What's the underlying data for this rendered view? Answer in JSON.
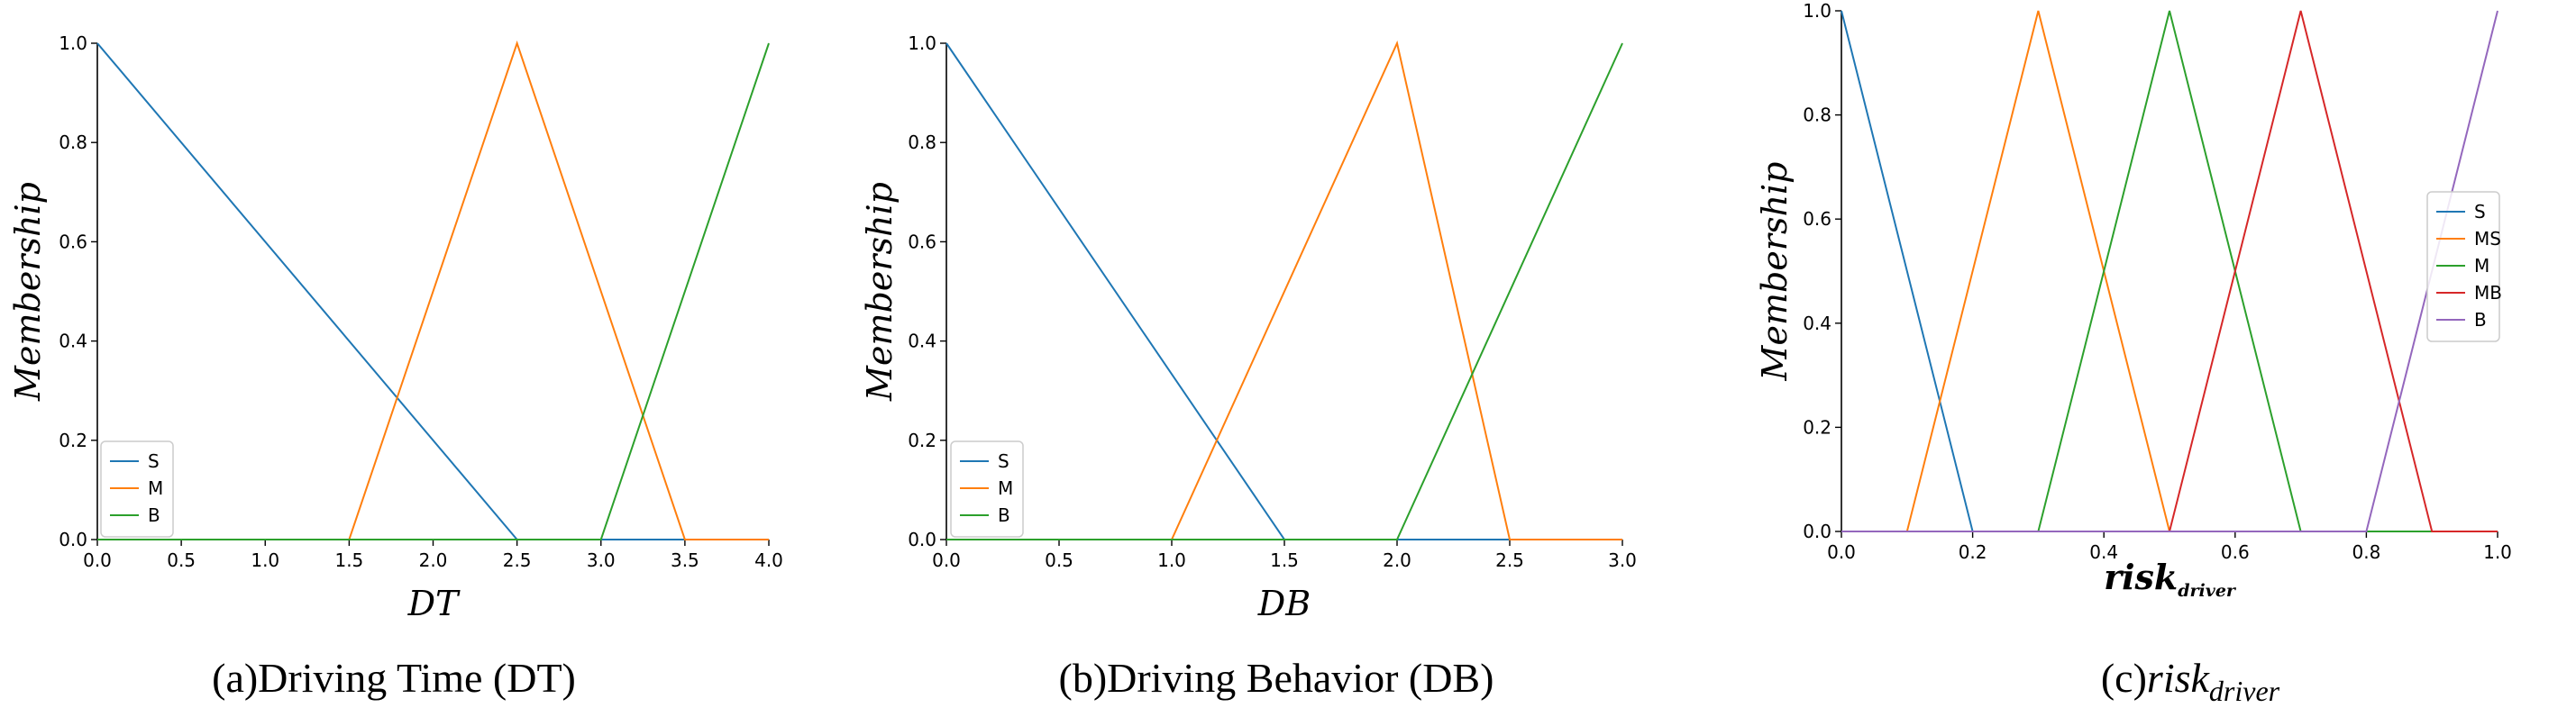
{
  "colors": {
    "S": "#1f77b4",
    "M": "#ff7f0e",
    "B": "#2ca02c",
    "MS": "#ff7f0e",
    "MB": "#d62728",
    "Bp": "#9467bd"
  },
  "chart_data": [
    {
      "type": "line",
      "caption": "(a)Driving Time (DT)",
      "xlabel": "DT",
      "ylabel": "Membership",
      "xlim": [
        0,
        4
      ],
      "ylim": [
        0,
        1
      ],
      "xticks": [
        "0.0",
        "0.5",
        "1.0",
        "1.5",
        "2.0",
        "2.5",
        "3.0",
        "3.5",
        "4.0"
      ],
      "yticks": [
        "0.0",
        "0.2",
        "0.4",
        "0.6",
        "0.8",
        "1.0"
      ],
      "legend": "lower-left",
      "series": [
        {
          "name": "S",
          "color": "#1f77b4",
          "x": [
            0,
            2.5,
            4
          ],
          "y": [
            1,
            0,
            0
          ]
        },
        {
          "name": "M",
          "color": "#ff7f0e",
          "x": [
            0,
            1.5,
            2.5,
            3.5,
            4
          ],
          "y": [
            0,
            0,
            1,
            0,
            0
          ]
        },
        {
          "name": "B",
          "color": "#2ca02c",
          "x": [
            0,
            3,
            4
          ],
          "y": [
            0,
            0,
            1
          ]
        }
      ]
    },
    {
      "type": "line",
      "caption": "(b)Driving Behavior (DB)",
      "xlabel": "DB",
      "ylabel": "Membership",
      "xlim": [
        0,
        3
      ],
      "ylim": [
        0,
        1
      ],
      "xticks": [
        "0.0",
        "0.5",
        "1.0",
        "1.5",
        "2.0",
        "2.5",
        "3.0"
      ],
      "yticks": [
        "0.0",
        "0.2",
        "0.4",
        "0.6",
        "0.8",
        "1.0"
      ],
      "legend": "lower-left",
      "series": [
        {
          "name": "S",
          "color": "#1f77b4",
          "x": [
            0,
            1.5,
            3
          ],
          "y": [
            1,
            0,
            0
          ]
        },
        {
          "name": "M",
          "color": "#ff7f0e",
          "x": [
            0,
            1,
            2,
            2.5,
            3
          ],
          "y": [
            0,
            0,
            1,
            0,
            0
          ]
        },
        {
          "name": "B",
          "color": "#2ca02c",
          "x": [
            0,
            2,
            3
          ],
          "y": [
            0,
            0,
            1
          ]
        }
      ]
    },
    {
      "type": "line",
      "caption_prefix": "(c)",
      "caption_main": "risk",
      "caption_sub": "driver",
      "xlabel_main": "risk",
      "xlabel_sub": "driver",
      "ylabel": "Membership",
      "xlim": [
        0,
        1
      ],
      "ylim": [
        0,
        1
      ],
      "xticks": [
        "0.0",
        "0.2",
        "0.4",
        "0.6",
        "0.8",
        "1.0"
      ],
      "yticks": [
        "0.0",
        "0.2",
        "0.4",
        "0.6",
        "0.8",
        "1.0"
      ],
      "legend": "center-right",
      "series": [
        {
          "name": "S",
          "color": "#1f77b4",
          "x": [
            0,
            0.2,
            1
          ],
          "y": [
            1,
            0,
            0
          ]
        },
        {
          "name": "MS",
          "color": "#ff7f0e",
          "x": [
            0,
            0.1,
            0.3,
            0.5,
            1
          ],
          "y": [
            0,
            0,
            1,
            0,
            0
          ]
        },
        {
          "name": "M",
          "color": "#2ca02c",
          "x": [
            0,
            0.3,
            0.5,
            0.7,
            1
          ],
          "y": [
            0,
            0,
            1,
            0,
            0
          ]
        },
        {
          "name": "MB",
          "color": "#d62728",
          "x": [
            0,
            0.5,
            0.7,
            0.9,
            1
          ],
          "y": [
            0,
            0,
            1,
            0,
            0
          ]
        },
        {
          "name": "B",
          "color": "#9467bd",
          "x": [
            0,
            0.8,
            1
          ],
          "y": [
            0,
            0,
            1
          ]
        }
      ]
    }
  ]
}
